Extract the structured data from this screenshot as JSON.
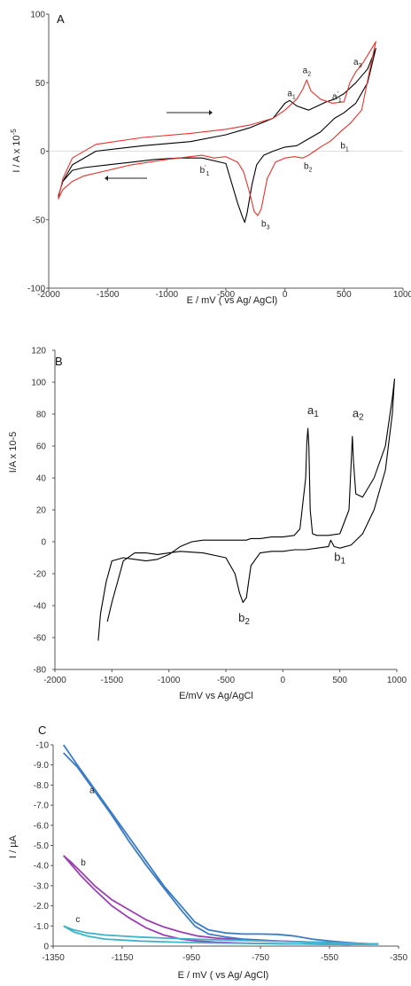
{
  "chart_data": [
    {
      "panel": "A",
      "type": "line",
      "xlabel": "E / mV ( vs Ag/ AgCl)",
      "ylabel": "I / A x 10",
      "ylabel_sup": "-5",
      "xlim": [
        -2000,
        1000
      ],
      "ylim": [
        -100,
        100
      ],
      "xticks": [
        -2000,
        -1500,
        -1000,
        -500,
        0,
        500,
        1000
      ],
      "yticks": [
        -100,
        -50,
        0,
        50,
        100
      ],
      "arrows": [
        "forward scan (right)",
        "reverse scan (left)"
      ],
      "series": [
        {
          "color": "#000000",
          "x": [
            -1920,
            -1880,
            -1800,
            -1600,
            -1200,
            -800,
            -500,
            -300,
            -100,
            0,
            40,
            100,
            200,
            300,
            350,
            420,
            500,
            600,
            700,
            770,
            700,
            600,
            500,
            420,
            360,
            300,
            200,
            100,
            0,
            -100,
            -180,
            -240,
            -280,
            -320,
            -340,
            -360,
            -400,
            -500,
            -700,
            -900,
            -1100,
            -1300,
            -1500,
            -1700,
            -1800,
            -1880,
            -1920
          ],
          "y": [
            -33,
            -22,
            -10,
            0,
            4,
            7,
            12,
            17,
            24,
            35,
            37,
            33,
            30,
            34,
            36,
            38,
            42,
            50,
            60,
            75,
            50,
            35,
            28,
            24,
            19,
            14,
            9,
            4,
            3,
            0,
            -3,
            -10,
            -25,
            -45,
            -52,
            -48,
            -38,
            -9,
            -5,
            -5,
            -6,
            -8,
            -10,
            -12,
            -14,
            -22,
            -33
          ]
        },
        {
          "color": "#e8322b",
          "x": [
            -1920,
            -1880,
            -1800,
            -1600,
            -1200,
            -800,
            -500,
            -300,
            -100,
            0,
            100,
            150,
            185,
            220,
            300,
            400,
            500,
            550,
            600,
            650,
            700,
            770,
            720,
            650,
            550,
            480,
            420,
            380,
            320,
            250,
            200,
            150,
            80,
            0,
            -80,
            -150,
            -200,
            -230,
            -260,
            -300,
            -350,
            -400,
            -500,
            -600,
            -700,
            -1000,
            -1300,
            -1500,
            -1700,
            -1800,
            -1880,
            -1920
          ],
          "y": [
            -35,
            -20,
            -5,
            5,
            10,
            13,
            16,
            19,
            24,
            30,
            38,
            45,
            52,
            44,
            38,
            35,
            36,
            50,
            58,
            63,
            70,
            80,
            60,
            30,
            20,
            15,
            10,
            7,
            4,
            0,
            -3,
            -5,
            -4,
            -5,
            -8,
            -20,
            -42,
            -47,
            -44,
            -30,
            -15,
            -8,
            -4,
            -5,
            -3,
            -6,
            -10,
            -14,
            -18,
            -22,
            -28,
            -35
          ]
        }
      ],
      "annotations": [
        {
          "text": "a",
          "sub": "1",
          "x": 20,
          "y": 40
        },
        {
          "text": "a",
          "sub": "2",
          "x": 150,
          "y": 57
        },
        {
          "text": "a",
          "sub": "1",
          "sup": "'",
          "x": 400,
          "y": 38
        },
        {
          "text": "a",
          "sub": "3",
          "x": 580,
          "y": 63
        },
        {
          "text": "b",
          "sub": "1",
          "x": 470,
          "y": 2
        },
        {
          "text": "b",
          "sub": "2",
          "x": 160,
          "y": -13
        },
        {
          "text": "b",
          "sub": "3",
          "x": -200,
          "y": -55
        },
        {
          "text": "b",
          "sub": "1",
          "sup": "'",
          "x": -720,
          "y": -16
        }
      ]
    },
    {
      "panel": "B",
      "type": "line",
      "xlabel": "E/mV vs Ag/AgCl",
      "ylabel": "I/A x 10-5",
      "xlim": [
        -2000,
        1000
      ],
      "ylim": [
        -80,
        120
      ],
      "xticks": [
        -2000,
        -1500,
        -1000,
        -500,
        0,
        500,
        1000
      ],
      "yticks": [
        -80,
        -60,
        -40,
        -20,
        0,
        20,
        40,
        60,
        80,
        100,
        120
      ],
      "series": [
        {
          "color": "#000000",
          "x": [
            -1620,
            -1600,
            -1550,
            -1500,
            -1400,
            -1300,
            -1200,
            -1100,
            -1000,
            -900,
            -800,
            -700,
            -500,
            -400,
            -350,
            -320,
            -280,
            -200,
            -100,
            0,
            100,
            150,
            200,
            210,
            220,
            228,
            240,
            260,
            300,
            400,
            500,
            580,
            600,
            610,
            620,
            640,
            700,
            800,
            900,
            960,
            980,
            960,
            900,
            800,
            700,
            600,
            500,
            450,
            420,
            400,
            300,
            200,
            100,
            0,
            -100,
            -200,
            -280,
            -300,
            -320,
            -350,
            -380,
            -420,
            -500,
            -700,
            -900,
            -1000,
            -1100,
            -1200,
            -1300,
            -1400,
            -1450,
            -1500,
            -1540
          ],
          "y": [
            -62,
            -45,
            -25,
            -12,
            -10,
            -11,
            -12,
            -11,
            -8,
            -3,
            0,
            1,
            1,
            1,
            1,
            1,
            2,
            2,
            3,
            3,
            4,
            8,
            40,
            62,
            71,
            60,
            20,
            5,
            4,
            4,
            5,
            20,
            50,
            66,
            50,
            30,
            28,
            40,
            60,
            90,
            102,
            80,
            45,
            20,
            5,
            -2,
            -4,
            -3,
            1,
            -3,
            -4,
            -5,
            -5,
            -6,
            -6,
            -7,
            -15,
            -25,
            -35,
            -38,
            -32,
            -20,
            -10,
            -7,
            -6,
            -7,
            -8,
            -7,
            -7,
            -12,
            -25,
            -38,
            -50
          ]
        }
      ],
      "annotations": [
        {
          "text": "a",
          "sub": "1",
          "x": 215,
          "y": 80
        },
        {
          "text": "a",
          "sub": "2",
          "x": 610,
          "y": 78
        },
        {
          "text": "b",
          "sub": "1",
          "x": 450,
          "y": -12
        },
        {
          "text": "b",
          "sub": "2",
          "x": -390,
          "y": -50
        }
      ]
    },
    {
      "panel": "C",
      "type": "line",
      "xlabel": "E / mV ( vs Ag/ AgCl)",
      "ylabel": "I / µA",
      "xlim": [
        -1350,
        -350
      ],
      "ylim": [
        0,
        -10
      ],
      "xticks": [
        -1350,
        -1150,
        -950,
        -750,
        -550,
        -350
      ],
      "yticks": [
        "-10",
        "-9.0",
        "-8.0",
        "-7.0",
        "-6.0",
        "-5.0",
        "-4.0",
        "-3.0",
        "-2.0",
        "-1.0",
        "0"
      ],
      "ytick_values": [
        -10,
        -9,
        -8,
        -7,
        -6,
        -5,
        -4,
        -3,
        -2,
        -1,
        0
      ],
      "series": [
        {
          "name": "a",
          "color": "#3b7cc4",
          "x": [
            -1320,
            -1280,
            -1230,
            -1180,
            -1130,
            -1080,
            -1030,
            -980,
            -940,
            -900,
            -850,
            -800,
            -750,
            -700,
            -650,
            -600,
            -550,
            -500,
            -450,
            -410,
            -450,
            -500,
            -550,
            -600,
            -650,
            -700,
            -750,
            -800,
            -850,
            -900,
            -940,
            -980,
            -1030,
            -1080,
            -1130,
            -1180,
            -1230,
            -1280,
            -1320
          ],
          "y": [
            -10.0,
            -9.0,
            -7.8,
            -6.6,
            -5.4,
            -4.2,
            -3.0,
            -2.0,
            -1.2,
            -0.8,
            -0.65,
            -0.6,
            -0.6,
            -0.58,
            -0.5,
            -0.35,
            -0.25,
            -0.18,
            -0.12,
            -0.1,
            -0.12,
            -0.15,
            -0.18,
            -0.2,
            -0.22,
            -0.25,
            -0.3,
            -0.35,
            -0.45,
            -0.6,
            -1.0,
            -1.8,
            -2.9,
            -4.0,
            -5.2,
            -6.5,
            -7.7,
            -8.9,
            -9.6
          ]
        },
        {
          "name": "b",
          "color": "#9b3fb3",
          "x": [
            -1320,
            -1300,
            -1270,
            -1230,
            -1180,
            -1130,
            -1080,
            -1030,
            -980,
            -930,
            -880,
            -800,
            -700,
            -600,
            -500,
            -410,
            -500,
            -600,
            -700,
            -800,
            -880,
            -930,
            -980,
            -1030,
            -1080,
            -1130,
            -1180,
            -1230,
            -1270,
            -1300,
            -1320
          ],
          "y": [
            -4.5,
            -4.2,
            -3.7,
            -3.0,
            -2.3,
            -1.8,
            -1.3,
            -0.95,
            -0.7,
            -0.5,
            -0.4,
            -0.3,
            -0.25,
            -0.2,
            -0.15,
            -0.1,
            -0.08,
            -0.1,
            -0.12,
            -0.15,
            -0.2,
            -0.25,
            -0.35,
            -0.55,
            -0.9,
            -1.4,
            -2.0,
            -2.8,
            -3.5,
            -4.1,
            -4.5
          ]
        },
        {
          "name": "c",
          "color": "#3fb3c9",
          "x": [
            -1320,
            -1290,
            -1250,
            -1200,
            -1100,
            -1000,
            -900,
            -800,
            -700,
            -600,
            -500,
            -410,
            -500,
            -600,
            -700,
            -800,
            -900,
            -1000,
            -1100,
            -1200,
            -1250,
            -1290,
            -1320
          ],
          "y": [
            -1.0,
            -0.8,
            -0.65,
            -0.55,
            -0.45,
            -0.38,
            -0.32,
            -0.28,
            -0.24,
            -0.2,
            -0.15,
            -0.1,
            -0.08,
            -0.1,
            -0.12,
            -0.14,
            -0.16,
            -0.2,
            -0.25,
            -0.35,
            -0.5,
            -0.7,
            -1.0
          ]
        }
      ],
      "annotations": [
        {
          "text": "a",
          "x": -1245,
          "y": -7.6
        },
        {
          "text": "b",
          "x": -1270,
          "y": -4.0
        },
        {
          "text": "c",
          "x": -1285,
          "y": -1.2
        }
      ]
    }
  ]
}
